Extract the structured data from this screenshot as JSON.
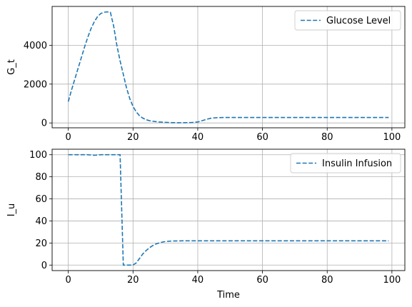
{
  "chart_data": [
    {
      "type": "line",
      "title": "",
      "xlabel": "",
      "ylabel": "G_t",
      "xlim": [
        -5,
        104
      ],
      "ylim": [
        -250,
        6000
      ],
      "xticks": [
        0,
        20,
        40,
        60,
        80,
        100
      ],
      "yticks": [
        0,
        2000,
        4000
      ],
      "grid": true,
      "legend_position": "top-right",
      "series": [
        {
          "name": "Glucose Level",
          "color": "#1f77b4",
          "line_style": "dashed",
          "x": [
            0,
            1,
            2,
            3,
            4,
            5,
            6,
            7,
            8,
            9,
            10,
            11,
            12,
            13,
            14,
            15,
            16,
            17,
            18,
            19,
            20,
            21,
            22,
            23,
            24,
            25,
            26,
            27,
            28,
            30,
            32,
            34,
            36,
            38,
            40,
            41,
            42,
            43,
            44,
            45,
            46,
            47,
            48,
            50,
            55,
            60,
            65,
            70,
            75,
            80,
            85,
            90,
            95,
            99
          ],
          "y": [
            1100,
            1700,
            2250,
            2800,
            3350,
            3900,
            4400,
            4850,
            5200,
            5470,
            5630,
            5700,
            5720,
            5700,
            5000,
            4000,
            3200,
            2500,
            1800,
            1250,
            850,
            570,
            370,
            250,
            170,
            120,
            90,
            70,
            50,
            30,
            15,
            10,
            15,
            20,
            50,
            100,
            150,
            200,
            240,
            260,
            270,
            275,
            280,
            280,
            280,
            280,
            280,
            280,
            280,
            280,
            280,
            280,
            280,
            280
          ]
        }
      ]
    },
    {
      "type": "line",
      "title": "",
      "xlabel": "Time",
      "ylabel": "I_u",
      "xlim": [
        -5,
        104
      ],
      "ylim": [
        -5,
        105
      ],
      "xticks": [
        0,
        20,
        40,
        60,
        80,
        100
      ],
      "yticks": [
        0,
        20,
        40,
        60,
        80,
        100
      ],
      "grid": true,
      "legend_position": "top-right",
      "series": [
        {
          "name": "Insulin Infusion",
          "color": "#1f77b4",
          "line_style": "dashed",
          "x": [
            0,
            2,
            4,
            6,
            8,
            10,
            12,
            14,
            16,
            17,
            18,
            19,
            20,
            21,
            22,
            23,
            24,
            25,
            26,
            27,
            28,
            29,
            30,
            31,
            32,
            34,
            36,
            40,
            45,
            50,
            60,
            70,
            80,
            90,
            99
          ],
          "y": [
            100,
            100,
            100,
            100,
            99.5,
            100,
            100,
            100,
            100,
            0,
            0,
            0,
            0,
            2,
            6,
            10,
            13,
            15.5,
            17.5,
            19,
            20,
            20.8,
            21.3,
            21.6,
            21.8,
            21.9,
            22,
            22,
            22,
            22,
            22,
            22,
            22,
            22,
            22
          ]
        }
      ]
    }
  ]
}
